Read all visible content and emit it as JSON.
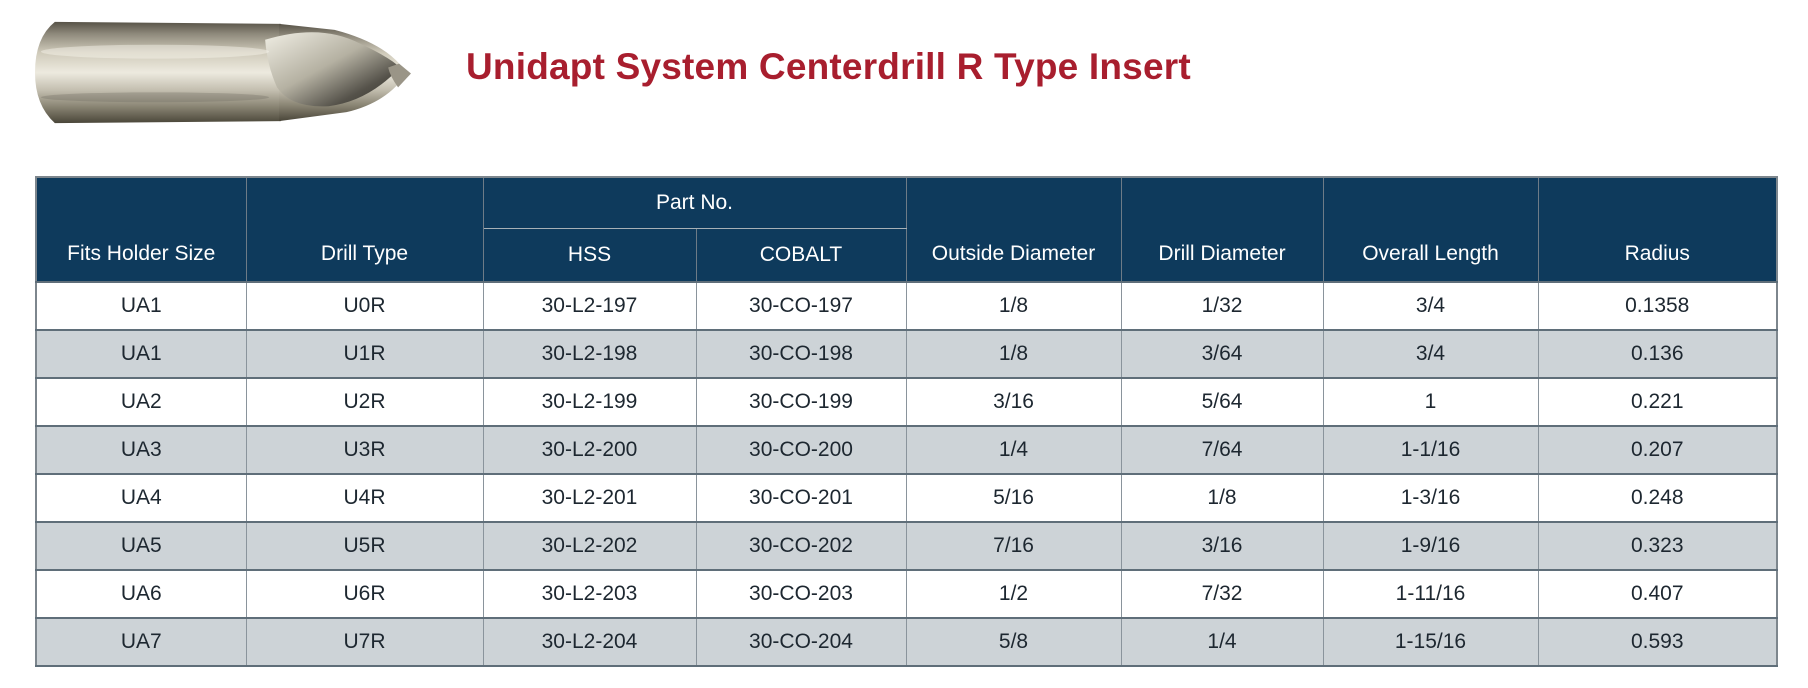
{
  "title": {
    "text": "Unidapt System Centerdrill R Type Insert",
    "color": "#A81E2E"
  },
  "product_image": {
    "name": "centerdrill-r-type-insert-photo"
  },
  "table": {
    "header": {
      "part_no_group": "Part No.",
      "columns": [
        "Fits Holder Size",
        "Drill Type",
        "HSS",
        "COBALT",
        "Outside Diameter",
        "Drill Diameter",
        "Overall Length",
        "Radius"
      ]
    },
    "rows": [
      [
        "UA1",
        "U0R",
        "30-L2-197",
        "30-CO-197",
        "1/8",
        "1/32",
        "3/4",
        "0.1358"
      ],
      [
        "UA1",
        "U1R",
        "30-L2-198",
        "30-CO-198",
        "1/8",
        "3/64",
        "3/4",
        "0.136"
      ],
      [
        "UA2",
        "U2R",
        "30-L2-199",
        "30-CO-199",
        "3/16",
        "5/64",
        "1",
        "0.221"
      ],
      [
        "UA3",
        "U3R",
        "30-L2-200",
        "30-CO-200",
        "1/4",
        "7/64",
        "1-1/16",
        "0.207"
      ],
      [
        "UA4",
        "U4R",
        "30-L2-201",
        "30-CO-201",
        "5/16",
        "1/8",
        "1-3/16",
        "0.248"
      ],
      [
        "UA5",
        "U5R",
        "30-L2-202",
        "30-CO-202",
        "7/16",
        "3/16",
        "1-9/16",
        "0.323"
      ],
      [
        "UA6",
        "U6R",
        "30-L2-203",
        "30-CO-203",
        "1/2",
        "7/32",
        "1-11/16",
        "0.407"
      ],
      [
        "UA7",
        "U7R",
        "30-L2-204",
        "30-CO-204",
        "5/8",
        "1/4",
        "1-15/16",
        "0.593"
      ]
    ],
    "colors": {
      "header_bg": "#0E3A5C",
      "header_text": "#FFFFFF",
      "row_alt_bg": "#CDD3D7",
      "cell_text": "#1D2730",
      "border": "#7D868D"
    }
  }
}
